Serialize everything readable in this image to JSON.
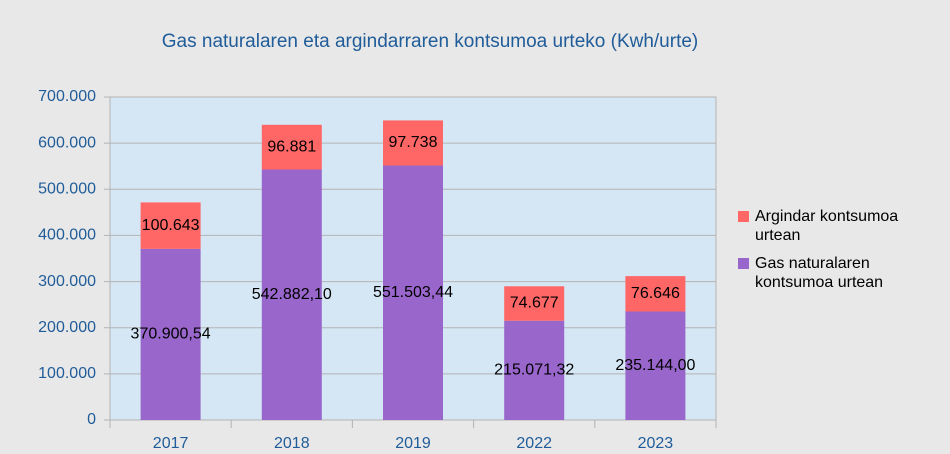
{
  "chart_data": {
    "type": "stacked_bar",
    "title": "Gas naturalaren eta argindarraren kontsumoa urteko (Kwh/urte)",
    "categories": [
      "2017",
      "2018",
      "2019",
      "2022",
      "2023"
    ],
    "series": [
      {
        "name": "Gas naturalaren kontsumoa urtean",
        "color": "#9966cc",
        "values": [
          370900.54,
          542882.1,
          551503.44,
          215071.32,
          235144.0
        ],
        "value_labels": [
          "370.900,54",
          "542.882,10",
          "551.503,44",
          "215.071,32",
          "235.144,00"
        ]
      },
      {
        "name": "Argindar kontsumoa urtean",
        "color": "#ff6666",
        "values": [
          100643,
          96881,
          97738,
          74677,
          76646
        ],
        "value_labels": [
          "100.643",
          "96.881",
          "97.738",
          "74.677",
          "76.646"
        ]
      }
    ],
    "ylim": [
      0,
      700000
    ],
    "yticks": [
      0,
      {
        "value": 100000,
        "label": "100.000"
      },
      {
        "value": 200000,
        "label": "200.000"
      },
      {
        "value": 300000,
        "label": "300.000"
      },
      {
        "value": 400000,
        "label": "400.000"
      },
      {
        "value": 500000,
        "label": "500.000"
      },
      {
        "value": 600000,
        "label": "600.000"
      },
      {
        "value": 700000,
        "label": "700.000"
      }
    ],
    "grid": true,
    "legend": "right"
  }
}
